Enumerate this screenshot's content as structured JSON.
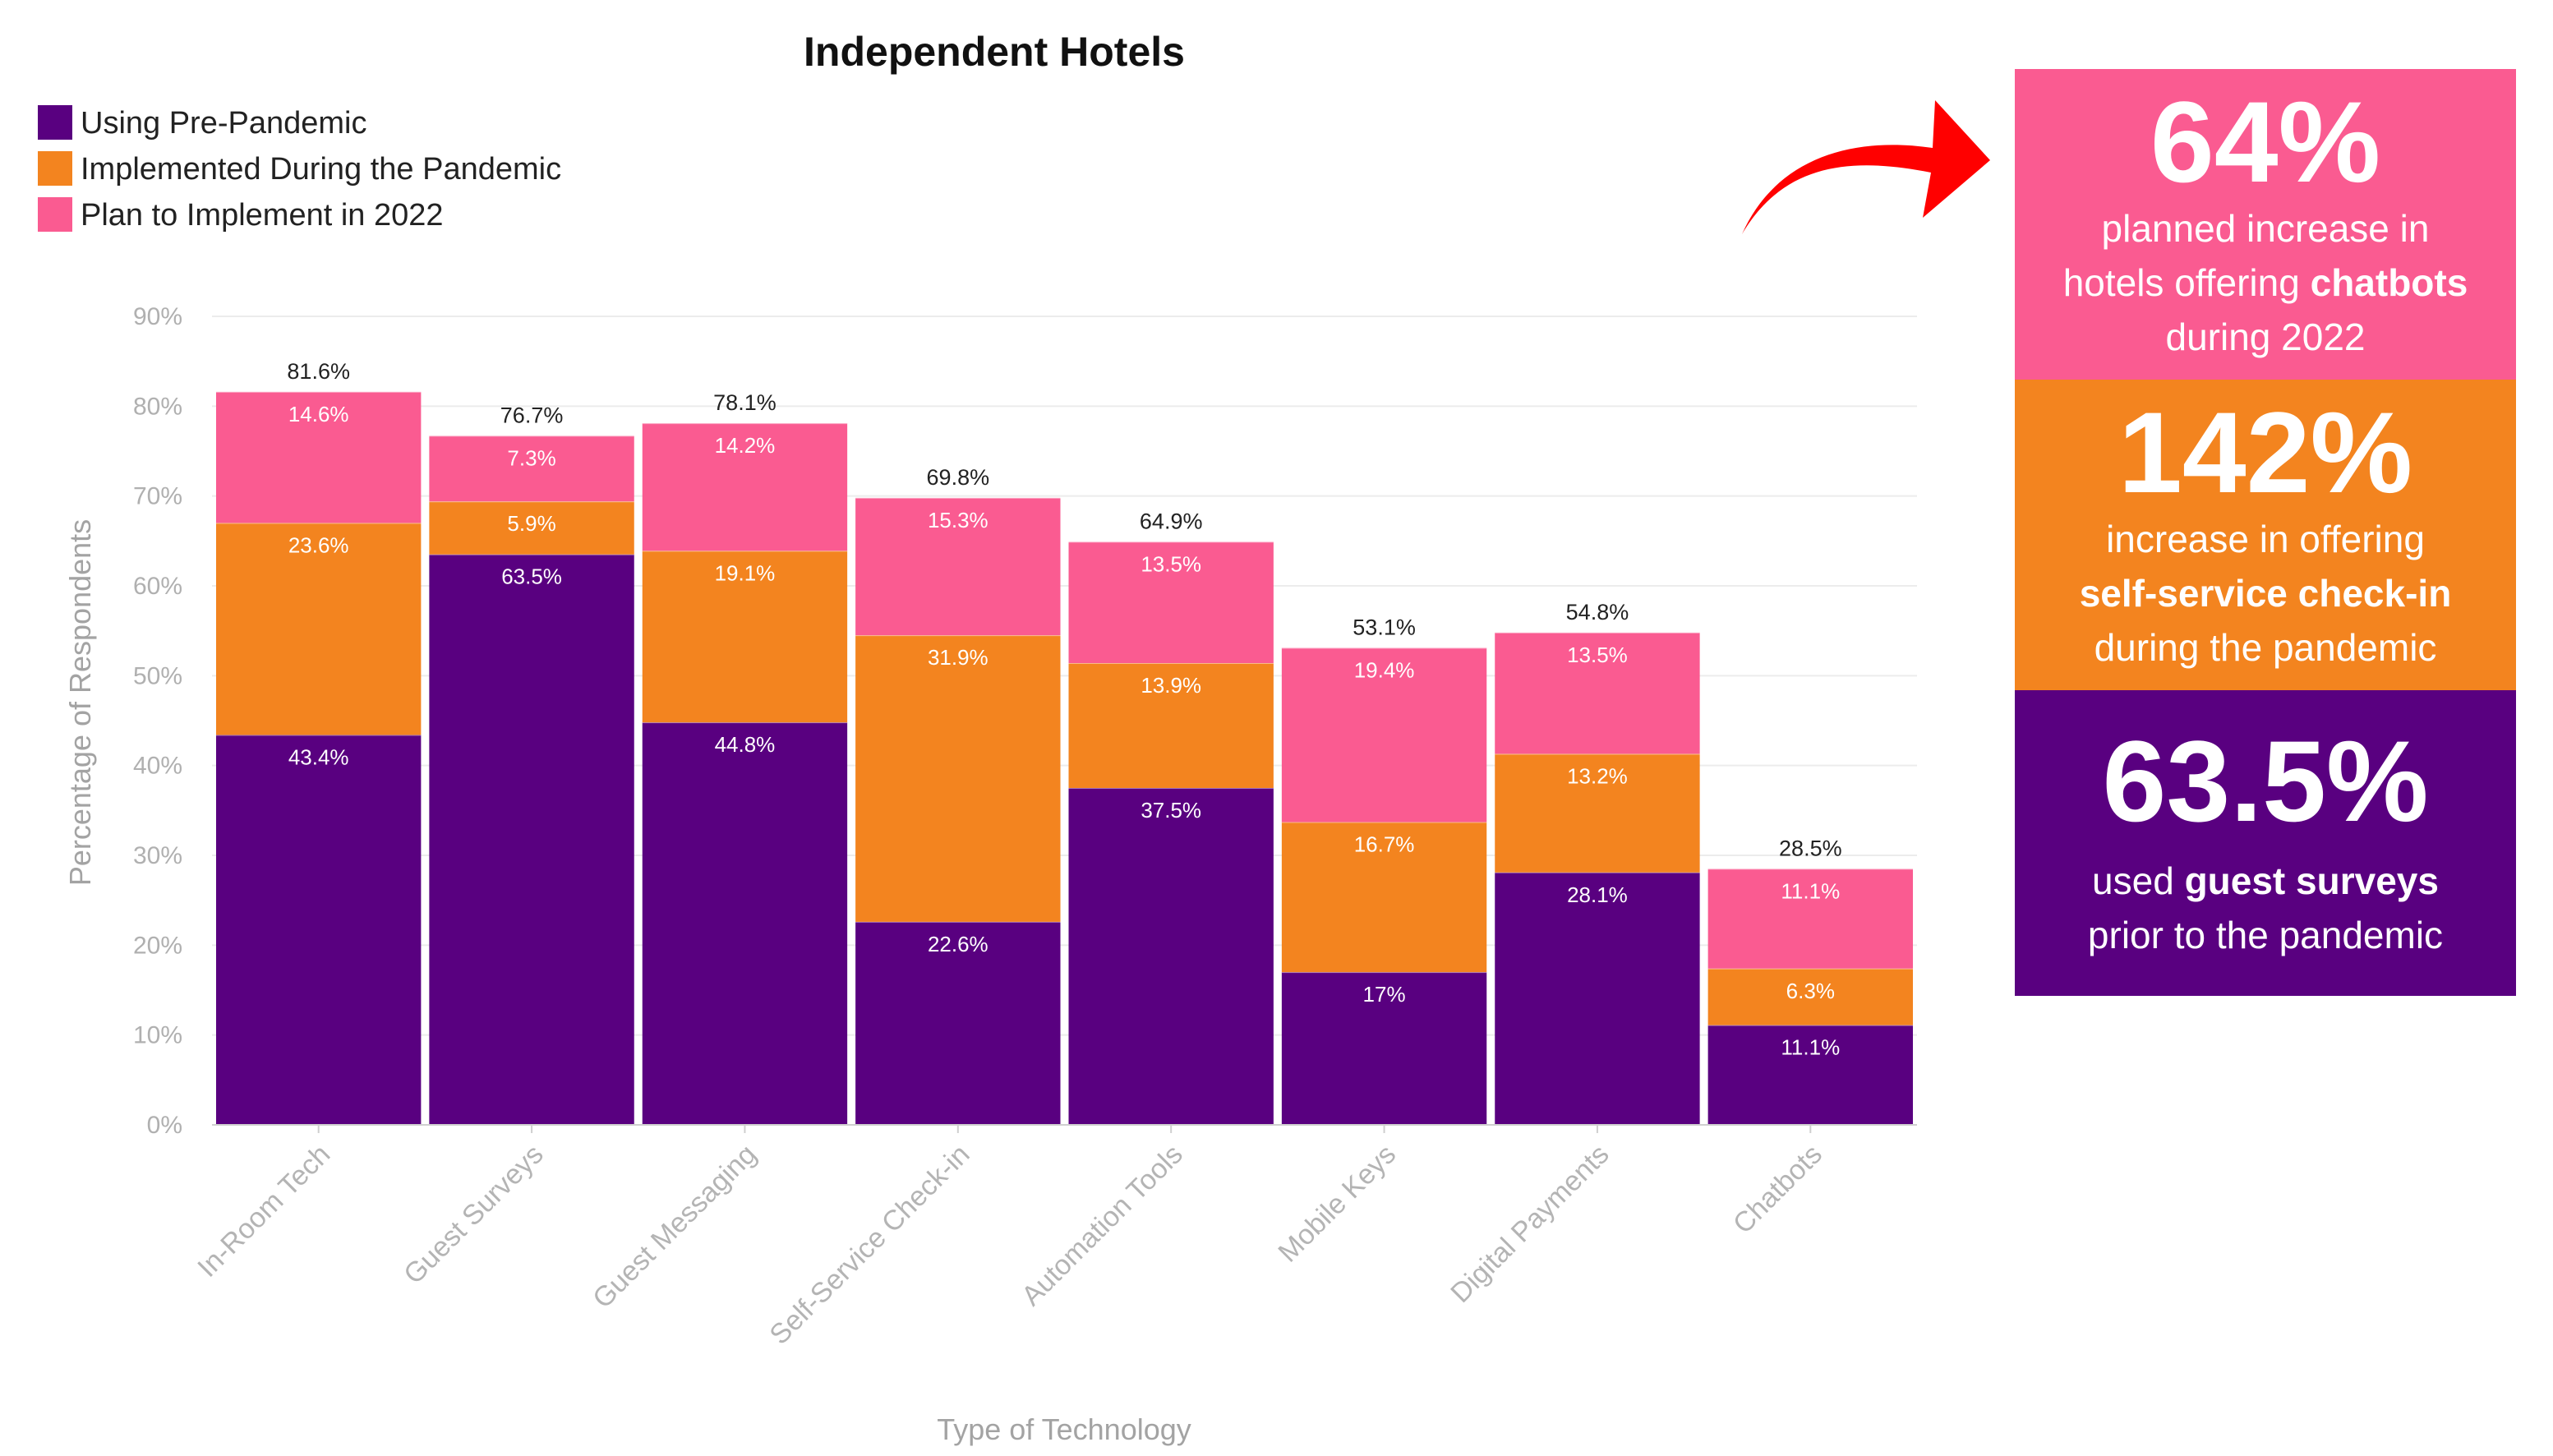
{
  "chart_data": {
    "type": "bar",
    "stacked": true,
    "title": "Independent Hotels",
    "xlabel": "Type of Technology",
    "ylabel": "Percentage of Respondents",
    "ylim": [
      0,
      90
    ],
    "y_ticks": [
      "0%",
      "10%",
      "20%",
      "30%",
      "40%",
      "50%",
      "60%",
      "70%",
      "80%",
      "90%"
    ],
    "grid": true,
    "legend_position": "top-left",
    "categories": [
      "In-Room Tech",
      "Guest Surveys",
      "Guest Messaging",
      "Self-Service Check-in",
      "Automation Tools",
      "Mobile Keys",
      "Digital Payments",
      "Chatbots"
    ],
    "series": [
      {
        "name": "Using Pre-Pandemic",
        "color": "#590080",
        "values": [
          43.4,
          63.5,
          44.8,
          22.6,
          37.5,
          17,
          28.1,
          11.1
        ],
        "labels": [
          "43.4%",
          "63.5%",
          "44.8%",
          "22.6%",
          "37.5%",
          "17%",
          "28.1%",
          "11.1%"
        ]
      },
      {
        "name": "Implemented During the Pandemic",
        "color": "#f3841f",
        "values": [
          23.6,
          5.9,
          19.1,
          31.9,
          13.9,
          16.7,
          13.2,
          6.3
        ],
        "labels": [
          "23.6%",
          "5.9%",
          "19.1%",
          "31.9%",
          "13.9%",
          "16.7%",
          "13.2%",
          "6.3%"
        ]
      },
      {
        "name": "Plan to Implement in 2022",
        "color": "#fa5b91",
        "values": [
          14.6,
          7.3,
          14.2,
          15.3,
          13.5,
          19.4,
          13.5,
          11.1
        ],
        "labels": [
          "14.6%",
          "7.3%",
          "14.2%",
          "15.3%",
          "13.5%",
          "19.4%",
          "13.5%",
          "11.1%"
        ]
      }
    ],
    "totals": [
      81.6,
      76.7,
      78.1,
      69.8,
      64.9,
      53.1,
      54.8,
      28.5
    ],
    "total_labels": [
      "81.6%",
      "76.7%",
      "78.1%",
      "69.8%",
      "64.9%",
      "53.1%",
      "54.8%",
      "28.5%"
    ]
  },
  "callouts": {
    "arrow_color": "#ff0000",
    "chatbots": {
      "value": "64%",
      "line1": "planned increase in",
      "line2_pre": "hotels offering ",
      "line2_bold": "chatbots",
      "line3": "during 2022",
      "color": "#fa5b91"
    },
    "checkin": {
      "value": "142%",
      "line1": "increase in offering",
      "line2_bold": "self-service check-in",
      "line3": "during the pandemic",
      "color": "#f3841f"
    },
    "surveys": {
      "value": "63.5%",
      "line1_pre": "used ",
      "line1_bold": "guest surveys",
      "line2": "prior to the pandemic",
      "color": "#590080"
    }
  }
}
